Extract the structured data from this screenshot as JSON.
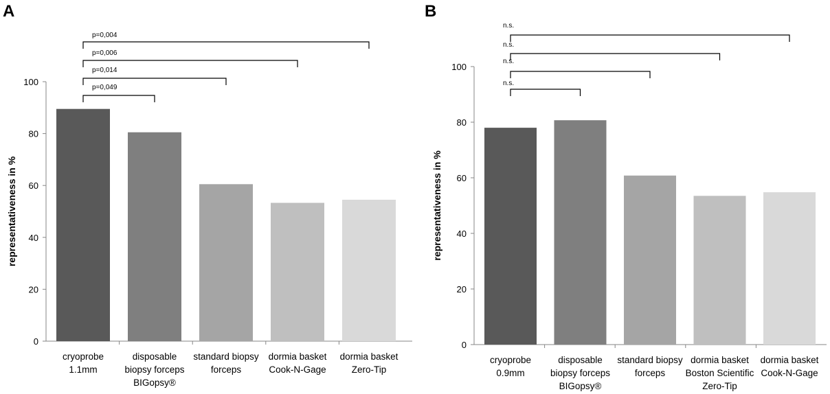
{
  "panels_count": 2,
  "chart_data": [
    {
      "type": "bar",
      "panel_label": "A",
      "title": "",
      "xlabel": "",
      "ylabel": "representativeness in %",
      "ylim": [
        0,
        100
      ],
      "yticks": [
        0,
        20,
        40,
        60,
        80,
        100
      ],
      "grid": false,
      "categories": [
        [
          "cryoprobe",
          "1.1mm"
        ],
        [
          "disposable",
          "biopsy forceps",
          "BIGopsy®"
        ],
        [
          "standard biopsy",
          "forceps"
        ],
        [
          "dormia basket",
          "Cook-N-Gage"
        ],
        [
          "dormia basket",
          "Zero-Tip"
        ]
      ],
      "values": [
        89.5,
        80.5,
        60.5,
        53.3,
        54.5
      ],
      "colors": [
        "#595959",
        "#7f7f7f",
        "#a5a5a5",
        "#bfbfbf",
        "#d9d9d9"
      ],
      "annotations": [
        {
          "label": "p=0,004",
          "from": 0,
          "to": 4
        },
        {
          "label": "p=0,006",
          "from": 0,
          "to": 3
        },
        {
          "label": "p=0,014",
          "from": 0,
          "to": 2
        },
        {
          "label": "p=0,049",
          "from": 0,
          "to": 1
        }
      ]
    },
    {
      "type": "bar",
      "panel_label": "B",
      "title": "",
      "xlabel": "",
      "ylabel": "representativeness in %",
      "ylim": [
        0,
        100
      ],
      "yticks": [
        0,
        20,
        40,
        60,
        80,
        100
      ],
      "grid": false,
      "categories": [
        [
          "cryoprobe",
          "0.9mm"
        ],
        [
          "disposable",
          "biopsy forceps",
          "BIGopsy®"
        ],
        [
          "standard biopsy",
          "forceps"
        ],
        [
          "dormia basket",
          "Boston Scientific",
          "Zero-Tip"
        ],
        [
          "dormia basket",
          "Cook-N-Gage"
        ]
      ],
      "values": [
        78,
        80.7,
        60.8,
        53.5,
        54.8
      ],
      "colors": [
        "#595959",
        "#7f7f7f",
        "#a5a5a5",
        "#bfbfbf",
        "#d9d9d9"
      ],
      "annotations": [
        {
          "label": "n.s.",
          "from": 0,
          "to": 4
        },
        {
          "label": "n.s.",
          "from": 0,
          "to": 3
        },
        {
          "label": "n.s.",
          "from": 0,
          "to": 2
        },
        {
          "label": "n.s.",
          "from": 0,
          "to": 1
        }
      ]
    }
  ]
}
